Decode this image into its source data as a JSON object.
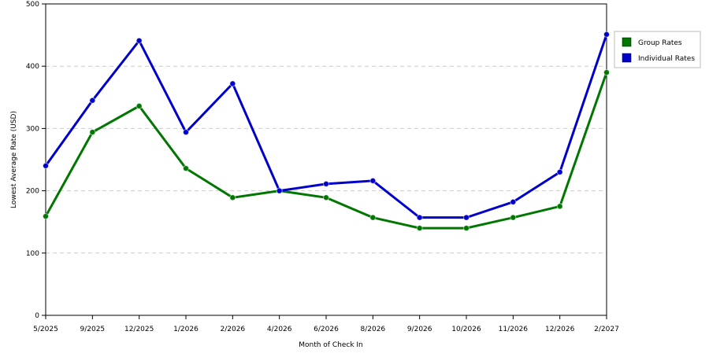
{
  "chart_data": {
    "type": "line",
    "x_label": "Month of Check In",
    "y_label": "Lowest Average Rate (USD)",
    "categories": [
      "5/2025",
      "9/2025",
      "12/2025",
      "1/2026",
      "2/2026",
      "4/2026",
      "6/2026",
      "8/2026",
      "9/2026",
      "10/2026",
      "11/2026",
      "12/2026",
      "2/2027"
    ],
    "series": [
      {
        "name": "Group Rates",
        "color": "#007700",
        "values": [
          159,
          294,
          336,
          236,
          189,
          200,
          189,
          157,
          140,
          140,
          157,
          175,
          390
        ]
      },
      {
        "name": "Individual Rates",
        "color": "#0000cc",
        "values": [
          240,
          345,
          441,
          294,
          372,
          200,
          211,
          216,
          157,
          157,
          182,
          230,
          451
        ]
      }
    ],
    "ylim": [
      0,
      500
    ],
    "yticks": [
      0,
      100,
      200,
      300,
      400,
      500
    ],
    "grid": true,
    "legend": "right"
  }
}
